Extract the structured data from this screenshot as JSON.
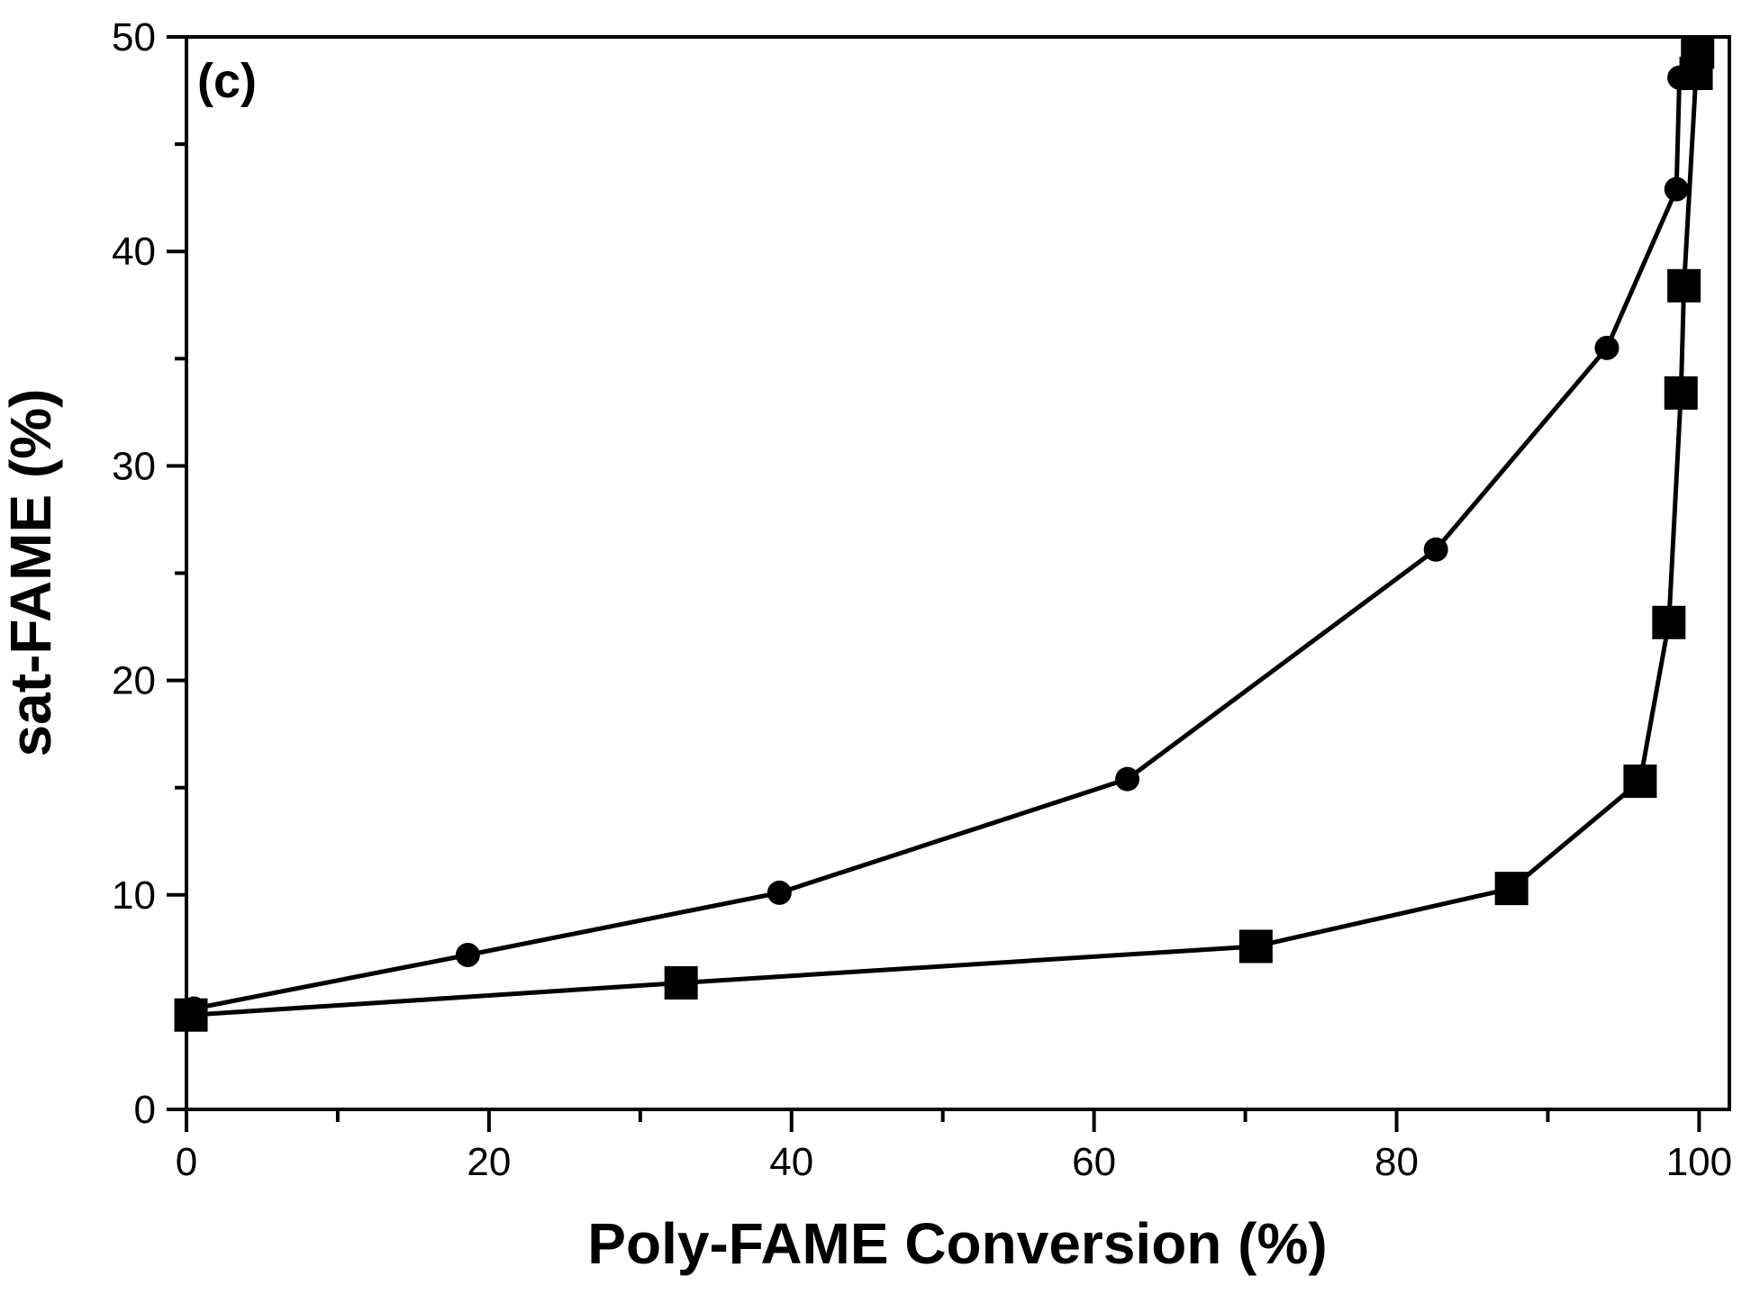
{
  "figure": {
    "panel_label": "(c)",
    "background_color": "#ffffff",
    "ink_color": "#000000"
  },
  "chart_data": {
    "type": "line",
    "title": "",
    "xlabel": "Poly-FAME Conversion (%)",
    "ylabel": "sat-FAME (%)",
    "xlim": [
      0,
      102
    ],
    "ylim": [
      0,
      50
    ],
    "x_major_ticks": [
      0,
      20,
      40,
      60,
      80,
      100
    ],
    "x_minor_ticks": [
      10,
      30,
      50,
      70,
      90
    ],
    "y_major_ticks": [
      0,
      10,
      20,
      30,
      40,
      50
    ],
    "y_minor_ticks": [
      5,
      15,
      25,
      35,
      45
    ],
    "grid": false,
    "legend_position": "none",
    "series": [
      {
        "name": "circle-series",
        "marker": "circle",
        "color": "#000000",
        "x": [
          0.5,
          18.6,
          39.2,
          62.2,
          82.6,
          93.9,
          98.5,
          98.7
        ],
        "y": [
          4.7,
          7.2,
          10.1,
          15.4,
          26.1,
          35.5,
          42.9,
          48.1
        ]
      },
      {
        "name": "square-series",
        "marker": "square",
        "color": "#000000",
        "x": [
          0.3,
          32.7,
          70.7,
          87.6,
          96.1,
          98.0,
          98.8,
          99.0,
          99.8,
          99.9
        ],
        "y": [
          4.4,
          5.9,
          7.6,
          10.3,
          15.3,
          22.7,
          33.4,
          38.4,
          48.3,
          49.3
        ]
      }
    ]
  }
}
